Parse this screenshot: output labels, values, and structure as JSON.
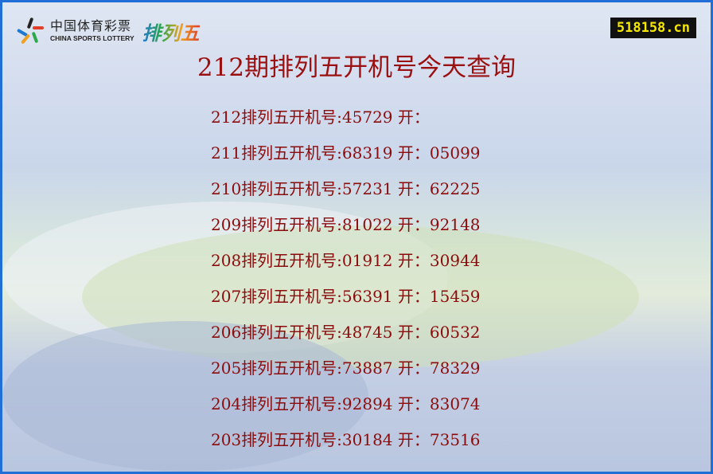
{
  "logo": {
    "cn": "中国体育彩票",
    "en": "CHINA SPORTS LOTTERY",
    "product": "排列五"
  },
  "site": "518158.cn",
  "title": "212期排列五开机号今天查询",
  "rows": [
    {
      "text": "212排列五开机号:45729 开："
    },
    {
      "text": "211排列五开机号:68319 开：05099"
    },
    {
      "text": "210排列五开机号:57231 开：62225"
    },
    {
      "text": "209排列五开机号:81022 开：92148"
    },
    {
      "text": "208排列五开机号:01912 开：30944"
    },
    {
      "text": "207排列五开机号:56391 开：15459"
    },
    {
      "text": "206排列五开机号:48745 开：60532"
    },
    {
      "text": "205排列五开机号:73887 开：78329"
    },
    {
      "text": "204排列五开机号:92894 开：83074"
    },
    {
      "text": "203排列五开机号:30184 开：73516"
    }
  ],
  "colors": {
    "border": "#1f6fd6",
    "text": "#8b0c0c",
    "badge_bg": "#111111",
    "badge_text": "#f5e700"
  }
}
